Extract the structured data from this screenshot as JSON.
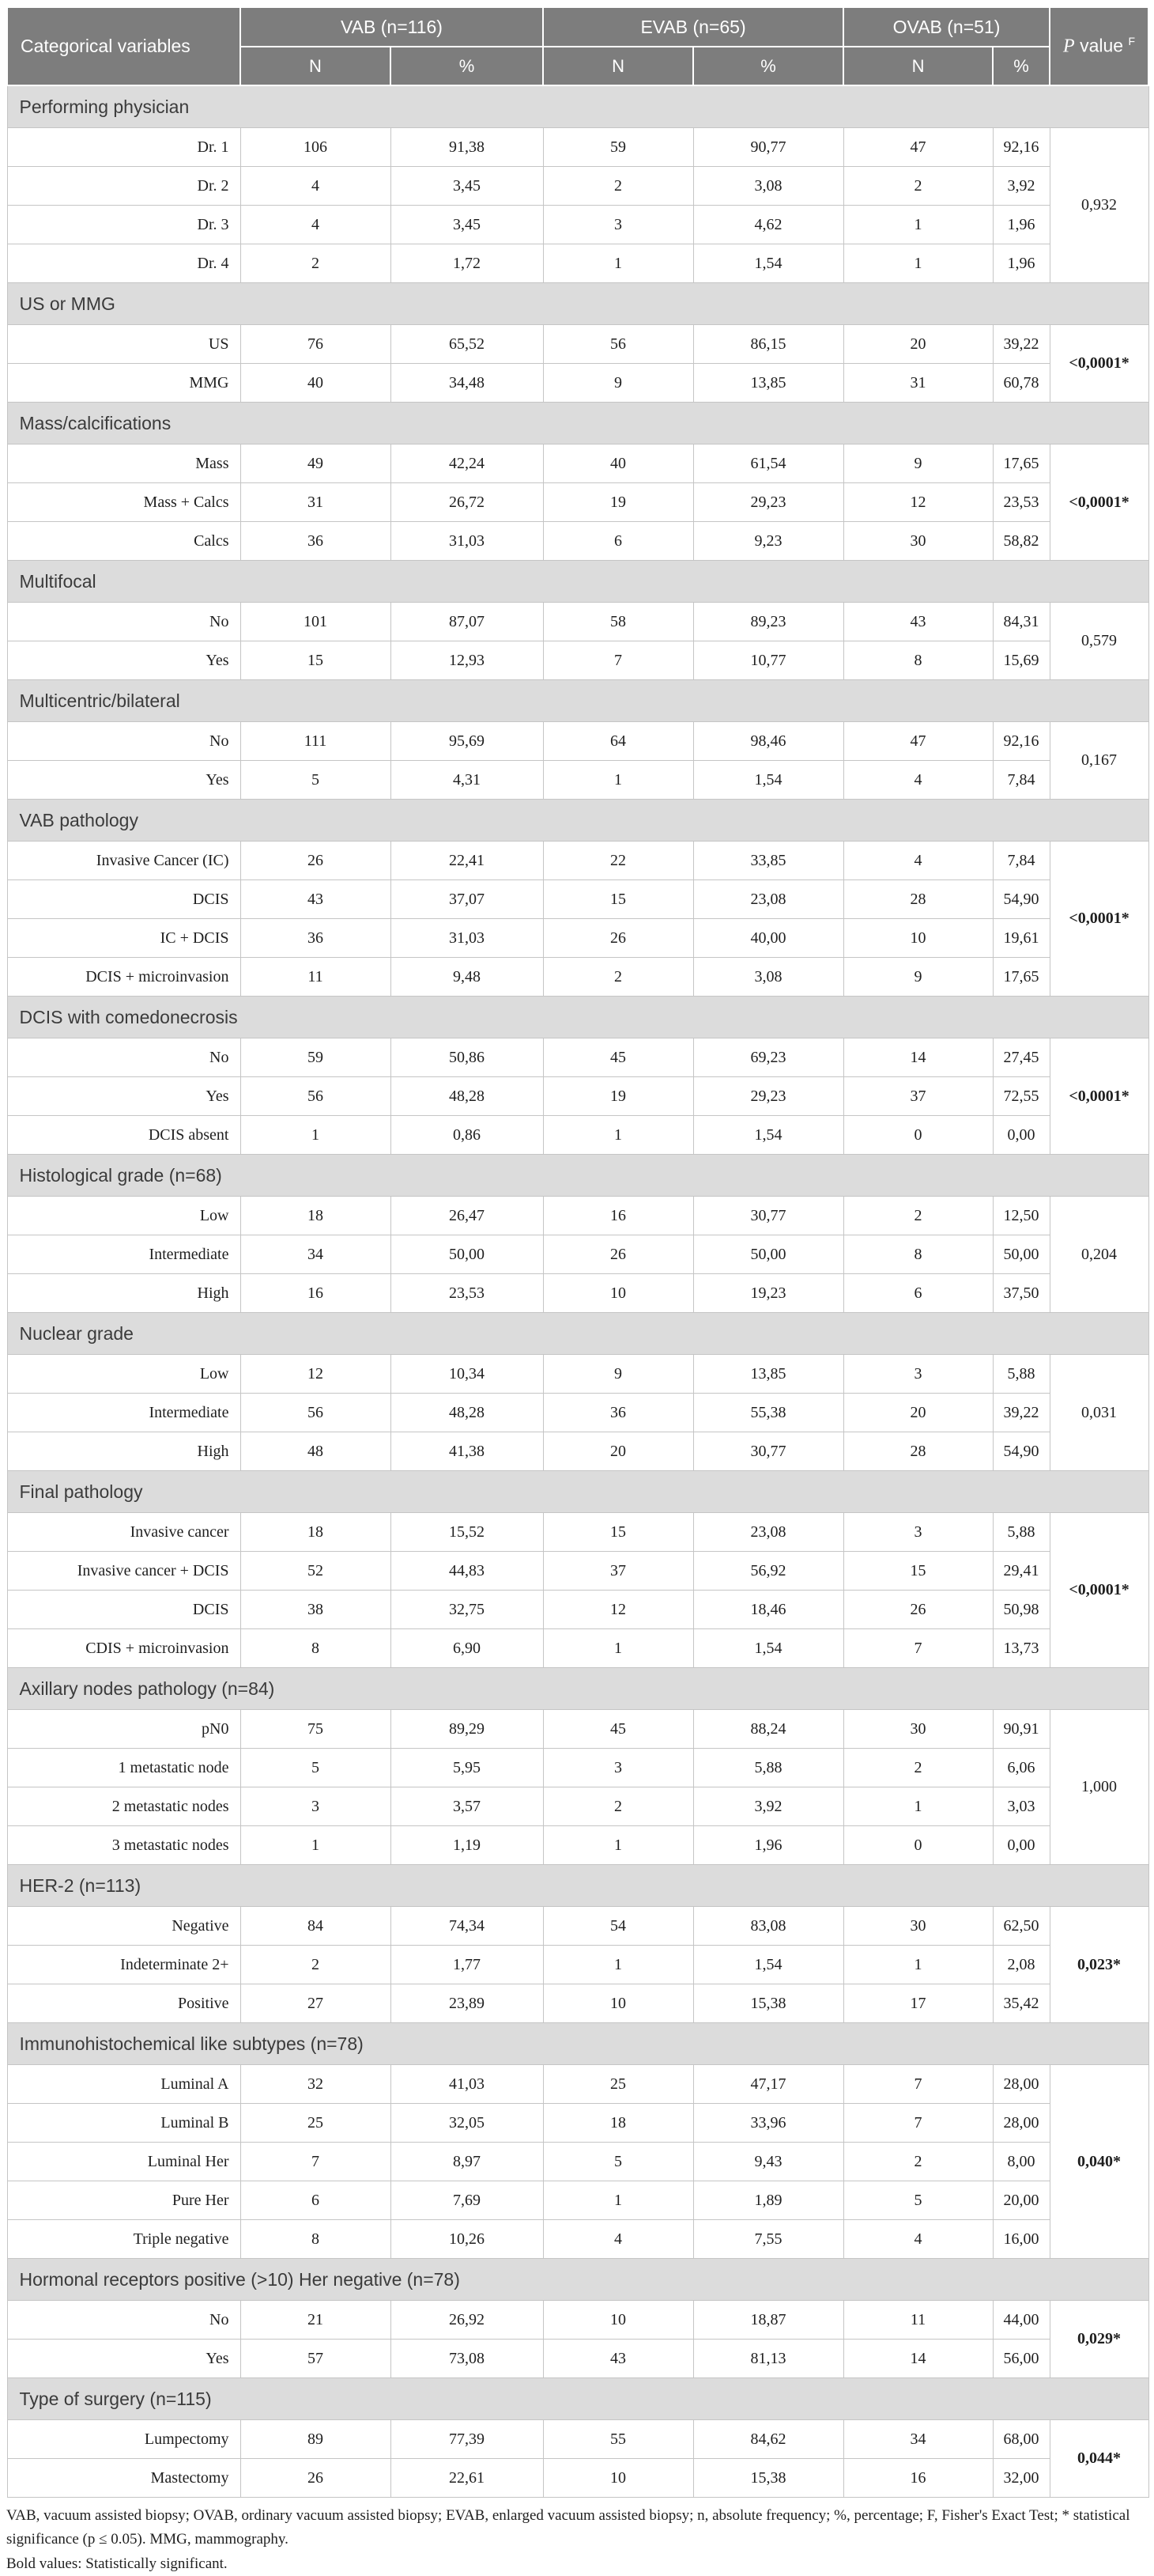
{
  "header": {
    "corner_label": "Categorical variables",
    "groups": [
      "VAB (n=116)",
      "EVAB (n=65)",
      "OVAB (n=51)"
    ],
    "subheaders": [
      "N",
      "%",
      "N",
      "%",
      "N",
      "%"
    ],
    "p_italic": "P",
    "p_rest": " value ",
    "p_sup": "F"
  },
  "sections": [
    {
      "title": "Performing physician",
      "p": "0,932",
      "p_bold": false,
      "rows": [
        [
          "Dr. 1",
          "106",
          "91,38",
          "59",
          "90,77",
          "47",
          "92,16"
        ],
        [
          "Dr. 2",
          "4",
          "3,45",
          "2",
          "3,08",
          "2",
          "3,92"
        ],
        [
          "Dr. 3",
          "4",
          "3,45",
          "3",
          "4,62",
          "1",
          "1,96"
        ],
        [
          "Dr. 4",
          "2",
          "1,72",
          "1",
          "1,54",
          "1",
          "1,96"
        ]
      ]
    },
    {
      "title": "US or MMG",
      "p": "<0,0001*",
      "p_bold": true,
      "rows": [
        [
          "US",
          "76",
          "65,52",
          "56",
          "86,15",
          "20",
          "39,22"
        ],
        [
          "MMG",
          "40",
          "34,48",
          "9",
          "13,85",
          "31",
          "60,78"
        ]
      ]
    },
    {
      "title": "Mass/calcifications",
      "p": "<0,0001*",
      "p_bold": true,
      "rows": [
        [
          "Mass",
          "49",
          "42,24",
          "40",
          "61,54",
          "9",
          "17,65"
        ],
        [
          "Mass + Calcs",
          "31",
          "26,72",
          "19",
          "29,23",
          "12",
          "23,53"
        ],
        [
          "Calcs",
          "36",
          "31,03",
          "6",
          "9,23",
          "30",
          "58,82"
        ]
      ]
    },
    {
      "title": "Multifocal",
      "p": "0,579",
      "p_bold": false,
      "rows": [
        [
          "No",
          "101",
          "87,07",
          "58",
          "89,23",
          "43",
          "84,31"
        ],
        [
          "Yes",
          "15",
          "12,93",
          "7",
          "10,77",
          "8",
          "15,69"
        ]
      ]
    },
    {
      "title": "Multicentric/bilateral",
      "p": "0,167",
      "p_bold": false,
      "rows": [
        [
          "No",
          "111",
          "95,69",
          "64",
          "98,46",
          "47",
          "92,16"
        ],
        [
          "Yes",
          "5",
          "4,31",
          "1",
          "1,54",
          "4",
          "7,84"
        ]
      ]
    },
    {
      "title": "VAB pathology",
      "p": "<0,0001*",
      "p_bold": true,
      "rows": [
        [
          "Invasive Cancer (IC)",
          "26",
          "22,41",
          "22",
          "33,85",
          "4",
          "7,84"
        ],
        [
          "DCIS",
          "43",
          "37,07",
          "15",
          "23,08",
          "28",
          "54,90"
        ],
        [
          "IC + DCIS",
          "36",
          "31,03",
          "26",
          "40,00",
          "10",
          "19,61"
        ],
        [
          "DCIS + microinvasion",
          "11",
          "9,48",
          "2",
          "3,08",
          "9",
          "17,65"
        ]
      ]
    },
    {
      "title": "DCIS with comedonecrosis",
      "p": "<0,0001*",
      "p_bold": true,
      "rows": [
        [
          "No",
          "59",
          "50,86",
          "45",
          "69,23",
          "14",
          "27,45"
        ],
        [
          "Yes",
          "56",
          "48,28",
          "19",
          "29,23",
          "37",
          "72,55"
        ],
        [
          "DCIS absent",
          "1",
          "0,86",
          "1",
          "1,54",
          "0",
          "0,00"
        ]
      ]
    },
    {
      "title": "Histological grade (n=68)",
      "p": "0,204",
      "p_bold": false,
      "rows": [
        [
          "Low",
          "18",
          "26,47",
          "16",
          "30,77",
          "2",
          "12,50"
        ],
        [
          "Intermediate",
          "34",
          "50,00",
          "26",
          "50,00",
          "8",
          "50,00"
        ],
        [
          "High",
          "16",
          "23,53",
          "10",
          "19,23",
          "6",
          "37,50"
        ]
      ]
    },
    {
      "title": "Nuclear grade",
      "p": "0,031",
      "p_bold": false,
      "rows": [
        [
          "Low",
          "12",
          "10,34",
          "9",
          "13,85",
          "3",
          "5,88"
        ],
        [
          "Intermediate",
          "56",
          "48,28",
          "36",
          "55,38",
          "20",
          "39,22"
        ],
        [
          "High",
          "48",
          "41,38",
          "20",
          "30,77",
          "28",
          "54,90"
        ]
      ]
    },
    {
      "title": "Final pathology",
      "p": "<0,0001*",
      "p_bold": true,
      "rows": [
        [
          "Invasive cancer",
          "18",
          "15,52",
          "15",
          "23,08",
          "3",
          "5,88"
        ],
        [
          "Invasive cancer + DCIS",
          "52",
          "44,83",
          "37",
          "56,92",
          "15",
          "29,41"
        ],
        [
          "DCIS",
          "38",
          "32,75",
          "12",
          "18,46",
          "26",
          "50,98"
        ],
        [
          "CDIS + microinvasion",
          "8",
          "6,90",
          "1",
          "1,54",
          "7",
          "13,73"
        ]
      ]
    },
    {
      "title": "Axillary nodes pathology (n=84)",
      "p": "1,000",
      "p_bold": false,
      "rows": [
        [
          "pN0",
          "75",
          "89,29",
          "45",
          "88,24",
          "30",
          "90,91"
        ],
        [
          "1 metastatic node",
          "5",
          "5,95",
          "3",
          "5,88",
          "2",
          "6,06"
        ],
        [
          "2 metastatic nodes",
          "3",
          "3,57",
          "2",
          "3,92",
          "1",
          "3,03"
        ],
        [
          "3 metastatic nodes",
          "1",
          "1,19",
          "1",
          "1,96",
          "0",
          "0,00"
        ]
      ]
    },
    {
      "title": "HER-2 (n=113)",
      "p": "0,023*",
      "p_bold": true,
      "rows": [
        [
          "Negative",
          "84",
          "74,34",
          "54",
          "83,08",
          "30",
          "62,50"
        ],
        [
          "Indeterminate 2+",
          "2",
          "1,77",
          "1",
          "1,54",
          "1",
          "2,08"
        ],
        [
          "Positive",
          "27",
          "23,89",
          "10",
          "15,38",
          "17",
          "35,42"
        ]
      ]
    },
    {
      "title": "Immunohistochemical like subtypes (n=78)",
      "p": "0,040*",
      "p_bold": true,
      "rows": [
        [
          "Luminal A",
          "32",
          "41,03",
          "25",
          "47,17",
          "7",
          "28,00"
        ],
        [
          "Luminal B",
          "25",
          "32,05",
          "18",
          "33,96",
          "7",
          "28,00"
        ],
        [
          "Luminal Her",
          "7",
          "8,97",
          "5",
          "9,43",
          "2",
          "8,00"
        ],
        [
          "Pure Her",
          "6",
          "7,69",
          "1",
          "1,89",
          "5",
          "20,00"
        ],
        [
          "Triple negative",
          "8",
          "10,26",
          "4",
          "7,55",
          "4",
          "16,00"
        ]
      ]
    },
    {
      "title": "Hormonal receptors positive (>10) Her negative (n=78)",
      "p": "0,029*",
      "p_bold": true,
      "rows": [
        [
          "No",
          "21",
          "26,92",
          "10",
          "18,87",
          "11",
          "44,00"
        ],
        [
          "Yes",
          "57",
          "73,08",
          "43",
          "81,13",
          "14",
          "56,00"
        ]
      ]
    },
    {
      "title": "Type of surgery (n=115)",
      "p": "0,044*",
      "p_bold": true,
      "rows": [
        [
          "Lumpectomy",
          "89",
          "77,39",
          "55",
          "84,62",
          "34",
          "68,00"
        ],
        [
          "Mastectomy",
          "26",
          "22,61",
          "10",
          "15,38",
          "16",
          "32,00"
        ]
      ]
    }
  ],
  "footnotes": [
    "VAB, vacuum assisted biopsy; OVAB, ordinary vacuum assisted biopsy; EVAB, enlarged vacuum assisted biopsy; n, absolute frequency; %, percentage; F, Fisher's Exact Test; * statistical significance (p ≤ 0.05). MMG, mammography.",
    "Bold values: Statistically significant."
  ],
  "colors": {
    "header_bg": "#7d7d7d",
    "section_band_bg": "#dcdcdc",
    "border": "#c5c5c5",
    "header_text": "#ffffff"
  }
}
